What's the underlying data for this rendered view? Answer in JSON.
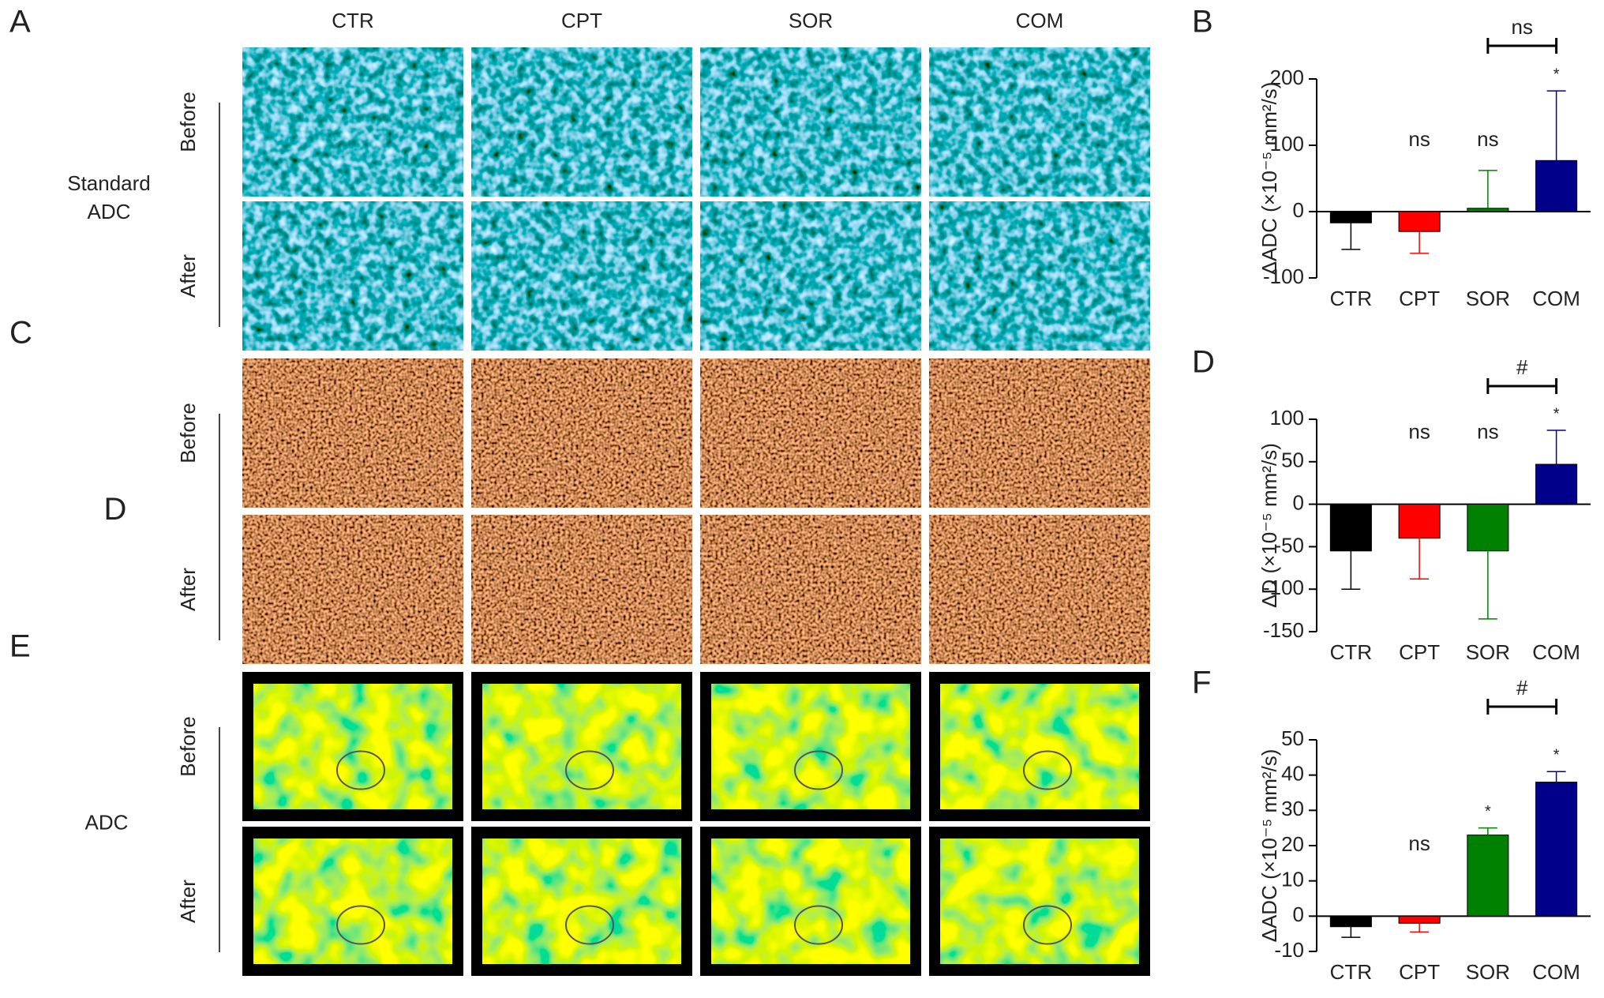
{
  "figure": {
    "columns": [
      "CTR",
      "CPT",
      "SOR",
      "COM"
    ],
    "rows": [
      {
        "panel": "A",
        "label": [
          "Standard",
          "ADC"
        ],
        "timepoints": [
          "Before",
          "After"
        ]
      },
      {
        "panel": "C",
        "label": [
          "D"
        ],
        "timepoints": [
          "Before",
          "After"
        ]
      },
      {
        "panel": "E",
        "label": [
          "ADC"
        ],
        "timepoints": [
          "Before",
          "After"
        ]
      }
    ]
  },
  "chart_data": [
    {
      "type": "bar",
      "panel": "B",
      "y_label": "ΔADC (×10⁻⁵ mm²/s)",
      "categories": [
        "CTR",
        "CPT",
        "SOR",
        "COM"
      ],
      "values": [
        -17,
        -30,
        5,
        77
      ],
      "errors": [
        40,
        33,
        57,
        105
      ],
      "colors": [
        "#000000",
        "#ff0000",
        "#008000",
        "#00008b"
      ],
      "notes": [
        null,
        "ns",
        "ns",
        "*"
      ],
      "comparison": {
        "from": "SOR",
        "to": "COM",
        "label": "ns"
      },
      "ylim": [
        -100,
        200
      ],
      "yticks": [
        -100,
        0,
        100,
        200
      ]
    },
    {
      "type": "bar",
      "panel": "D",
      "y_label": "ΔD (×10⁻⁵ mm²/s)",
      "categories": [
        "CTR",
        "CPT",
        "SOR",
        "COM"
      ],
      "values": [
        -55,
        -40,
        -55,
        47
      ],
      "errors": [
        45,
        48,
        80,
        40
      ],
      "colors": [
        "#000000",
        "#ff0000",
        "#008000",
        "#00008b"
      ],
      "notes": [
        null,
        "ns",
        "ns",
        "*"
      ],
      "comparison": {
        "from": "SOR",
        "to": "COM",
        "label": "#"
      },
      "ylim": [
        -150,
        100
      ],
      "yticks": [
        -150,
        -100,
        -50,
        0,
        50,
        100
      ]
    },
    {
      "type": "bar",
      "panel": "F",
      "y_label": "ΔADC (×10⁻⁵ mm²/s)",
      "categories": [
        "CTR",
        "CPT",
        "SOR",
        "COM"
      ],
      "values": [
        -3,
        -2,
        23,
        38
      ],
      "errors": [
        3,
        2.5,
        2,
        3
      ],
      "colors": [
        "#000000",
        "#ff0000",
        "#008000",
        "#00008b"
      ],
      "notes": [
        null,
        "ns",
        "*",
        "*"
      ],
      "comparison": {
        "from": "SOR",
        "to": "COM",
        "label": "#"
      },
      "ylim": [
        -10,
        50
      ],
      "yticks": [
        -10,
        0,
        10,
        20,
        30,
        40,
        50
      ]
    }
  ]
}
